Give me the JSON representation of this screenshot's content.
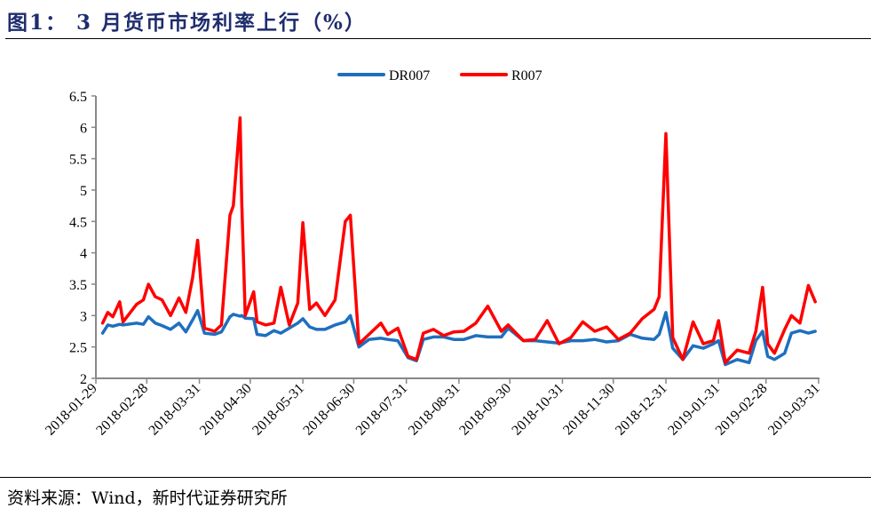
{
  "header": {
    "title": "图1： 3 月货币市场利率上行（%）"
  },
  "footer": {
    "source": "资料来源：Wind，新时代证券研究所"
  },
  "colors": {
    "DR007": "#1f6fbf",
    "R007": "#ff0000",
    "axis": "#888888"
  },
  "chart_data": {
    "type": "line",
    "title": "3 月货币市场利率上行（%）",
    "xlabel": "",
    "ylabel": "%",
    "ylim": [
      2,
      6.5
    ],
    "yticks": [
      "6.5",
      "6",
      "5.5",
      "5",
      "4.5",
      "4",
      "3.5",
      "3",
      "2.5",
      "2"
    ],
    "xticks": [
      "2018-01-29",
      "2018-02-28",
      "2018-03-31",
      "2018-04-30",
      "2018-05-31",
      "2018-06-30",
      "2018-07-31",
      "2018-08-31",
      "2018-09-30",
      "2018-10-31",
      "2018-11-30",
      "2018-12-31",
      "2019-01-31",
      "2019-02-28",
      "2019-03-31"
    ],
    "legend": [
      "DR007",
      "R007"
    ],
    "legend_position": "top",
    "grid": false,
    "x": [
      "2018-02-02",
      "2018-02-05",
      "2018-02-08",
      "2018-02-12",
      "2018-02-14",
      "2018-02-22",
      "2018-02-26",
      "2018-03-01",
      "2018-03-05",
      "2018-03-09",
      "2018-03-14",
      "2018-03-19",
      "2018-03-23",
      "2018-03-27",
      "2018-03-30",
      "2018-04-03",
      "2018-04-09",
      "2018-04-13",
      "2018-04-18",
      "2018-04-20",
      "2018-04-24",
      "2018-04-25",
      "2018-04-27",
      "2018-05-02",
      "2018-05-04",
      "2018-05-09",
      "2018-05-14",
      "2018-05-18",
      "2018-05-23",
      "2018-05-28",
      "2018-05-31",
      "2018-06-04",
      "2018-06-08",
      "2018-06-13",
      "2018-06-19",
      "2018-06-25",
      "2018-06-28",
      "2018-07-03",
      "2018-07-09",
      "2018-07-16",
      "2018-07-20",
      "2018-07-26",
      "2018-08-01",
      "2018-08-06",
      "2018-08-10",
      "2018-08-16",
      "2018-08-22",
      "2018-08-28",
      "2018-09-03",
      "2018-09-10",
      "2018-09-17",
      "2018-09-25",
      "2018-09-29",
      "2018-10-08",
      "2018-10-15",
      "2018-10-22",
      "2018-10-29",
      "2018-11-05",
      "2018-11-12",
      "2018-11-19",
      "2018-11-26",
      "2018-12-03",
      "2018-12-10",
      "2018-12-17",
      "2018-12-24",
      "2018-12-27",
      "2018-12-31",
      "2019-01-04",
      "2019-01-10",
      "2019-01-16",
      "2019-01-22",
      "2019-01-28",
      "2019-01-31",
      "2019-02-04",
      "2019-02-11",
      "2019-02-18",
      "2019-02-22",
      "2019-02-26",
      "2019-03-01",
      "2019-03-05",
      "2019-03-11",
      "2019-03-15",
      "2019-03-20",
      "2019-03-25",
      "2019-03-29"
    ],
    "series": [
      {
        "name": "DR007",
        "values": [
          2.72,
          2.85,
          2.83,
          2.86,
          2.85,
          2.88,
          2.86,
          2.98,
          2.88,
          2.84,
          2.78,
          2.88,
          2.74,
          2.93,
          3.08,
          2.72,
          2.7,
          2.74,
          2.98,
          3.02,
          2.99,
          3.0,
          2.96,
          2.95,
          2.7,
          2.68,
          2.76,
          2.72,
          2.8,
          2.88,
          2.95,
          2.82,
          2.78,
          2.78,
          2.85,
          2.9,
          3.0,
          2.5,
          2.62,
          2.64,
          2.62,
          2.6,
          2.33,
          2.28,
          2.62,
          2.66,
          2.66,
          2.62,
          2.62,
          2.68,
          2.66,
          2.66,
          2.8,
          2.6,
          2.6,
          2.58,
          2.56,
          2.6,
          2.6,
          2.62,
          2.58,
          2.6,
          2.7,
          2.64,
          2.62,
          2.7,
          3.05,
          2.48,
          2.3,
          2.52,
          2.48,
          2.55,
          2.6,
          2.22,
          2.3,
          2.25,
          2.6,
          2.75,
          2.35,
          2.3,
          2.4,
          2.72,
          2.76,
          2.72,
          2.75
        ]
      },
      {
        "name": "R007",
        "values": [
          2.88,
          3.05,
          2.98,
          3.22,
          2.9,
          3.18,
          3.25,
          3.5,
          3.3,
          3.25,
          3.0,
          3.28,
          3.05,
          3.6,
          4.2,
          2.8,
          2.75,
          2.85,
          4.6,
          4.75,
          6.15,
          4.8,
          3.0,
          3.38,
          2.9,
          2.85,
          2.88,
          3.45,
          2.85,
          3.2,
          4.48,
          3.1,
          3.2,
          3.0,
          3.25,
          4.5,
          4.6,
          2.55,
          2.7,
          2.88,
          2.7,
          2.8,
          2.35,
          2.3,
          2.72,
          2.78,
          2.68,
          2.74,
          2.75,
          2.88,
          3.15,
          2.75,
          2.85,
          2.6,
          2.62,
          2.92,
          2.55,
          2.65,
          2.9,
          2.75,
          2.82,
          2.62,
          2.72,
          2.95,
          3.1,
          3.3,
          5.9,
          2.65,
          2.3,
          2.9,
          2.55,
          2.6,
          2.92,
          2.25,
          2.45,
          2.4,
          2.75,
          3.45,
          2.55,
          2.4,
          2.78,
          3.0,
          2.88,
          3.48,
          3.22
        ]
      }
    ]
  },
  "legend": {
    "items": [
      {
        "label": "DR007"
      },
      {
        "label": "R007"
      }
    ]
  }
}
